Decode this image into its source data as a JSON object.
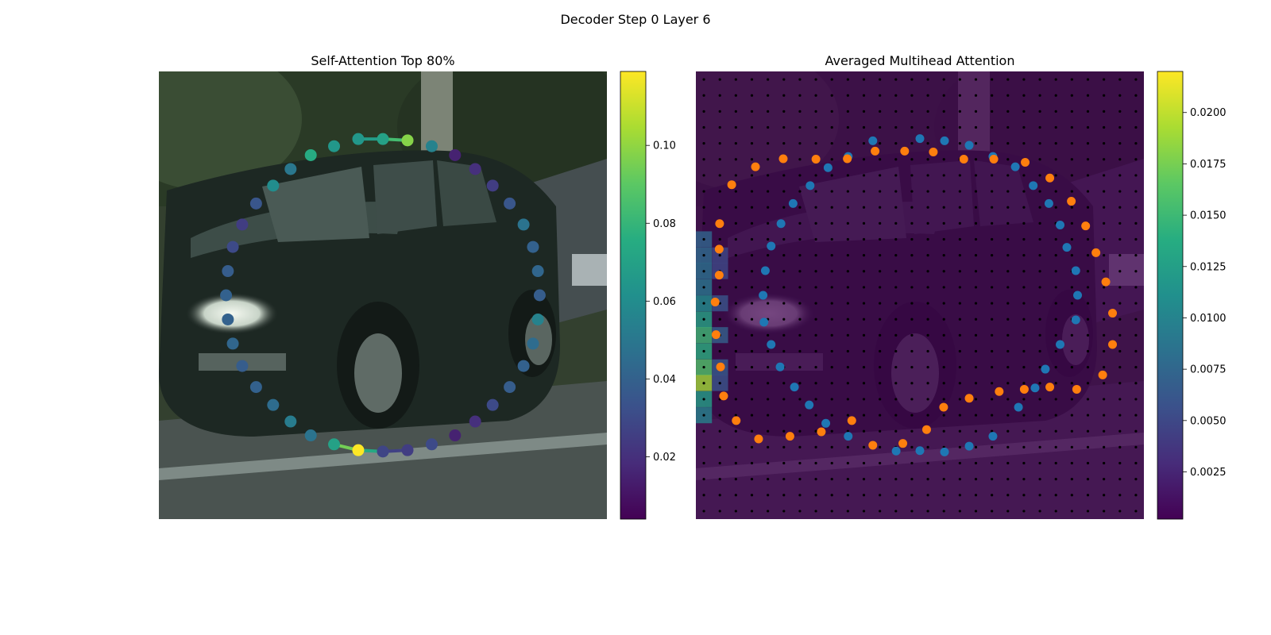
{
  "figure": {
    "title": "Decoder Step 0 Layer 6"
  },
  "chart_data": [
    {
      "type": "scatter",
      "title": "Self-Attention Top 80%",
      "background": "photo of dark green hatchback car on a street",
      "colormap": "viridis",
      "colorbar": {
        "ticks": [
          0.02,
          0.04,
          0.06,
          0.08,
          0.1
        ],
        "tick_labels": [
          "0.02",
          "0.04",
          "0.06",
          "0.08",
          "0.10"
        ],
        "range": [
          0.004,
          0.119
        ]
      },
      "grid": false,
      "points": [
        {
          "x": 0.445,
          "y": 0.151,
          "v": 0.065
        },
        {
          "x": 0.5,
          "y": 0.151,
          "v": 0.07
        },
        {
          "x": 0.555,
          "y": 0.154,
          "v": 0.098
        },
        {
          "x": 0.609,
          "y": 0.167,
          "v": 0.055
        },
        {
          "x": 0.661,
          "y": 0.187,
          "v": 0.015
        },
        {
          "x": 0.706,
          "y": 0.218,
          "v": 0.02
        },
        {
          "x": 0.745,
          "y": 0.255,
          "v": 0.025
        },
        {
          "x": 0.783,
          "y": 0.295,
          "v": 0.035
        },
        {
          "x": 0.814,
          "y": 0.342,
          "v": 0.048
        },
        {
          "x": 0.835,
          "y": 0.392,
          "v": 0.04
        },
        {
          "x": 0.846,
          "y": 0.446,
          "v": 0.042
        },
        {
          "x": 0.85,
          "y": 0.5,
          "v": 0.038
        },
        {
          "x": 0.846,
          "y": 0.554,
          "v": 0.055
        },
        {
          "x": 0.835,
          "y": 0.608,
          "v": 0.045
        },
        {
          "x": 0.814,
          "y": 0.658,
          "v": 0.04
        },
        {
          "x": 0.783,
          "y": 0.705,
          "v": 0.038
        },
        {
          "x": 0.745,
          "y": 0.745,
          "v": 0.03
        },
        {
          "x": 0.706,
          "y": 0.782,
          "v": 0.02
        },
        {
          "x": 0.661,
          "y": 0.813,
          "v": 0.015
        },
        {
          "x": 0.609,
          "y": 0.833,
          "v": 0.03
        },
        {
          "x": 0.555,
          "y": 0.846,
          "v": 0.025
        },
        {
          "x": 0.5,
          "y": 0.849,
          "v": 0.028
        },
        {
          "x": 0.445,
          "y": 0.846,
          "v": 0.119
        },
        {
          "x": 0.391,
          "y": 0.833,
          "v": 0.07
        },
        {
          "x": 0.339,
          "y": 0.813,
          "v": 0.048
        },
        {
          "x": 0.294,
          "y": 0.782,
          "v": 0.052
        },
        {
          "x": 0.255,
          "y": 0.745,
          "v": 0.045
        },
        {
          "x": 0.217,
          "y": 0.705,
          "v": 0.04
        },
        {
          "x": 0.186,
          "y": 0.658,
          "v": 0.038
        },
        {
          "x": 0.165,
          "y": 0.608,
          "v": 0.042
        },
        {
          "x": 0.154,
          "y": 0.554,
          "v": 0.04
        },
        {
          "x": 0.15,
          "y": 0.5,
          "v": 0.04
        },
        {
          "x": 0.154,
          "y": 0.446,
          "v": 0.038
        },
        {
          "x": 0.165,
          "y": 0.392,
          "v": 0.03
        },
        {
          "x": 0.186,
          "y": 0.342,
          "v": 0.025
        },
        {
          "x": 0.217,
          "y": 0.295,
          "v": 0.035
        },
        {
          "x": 0.255,
          "y": 0.255,
          "v": 0.06
        },
        {
          "x": 0.294,
          "y": 0.218,
          "v": 0.05
        },
        {
          "x": 0.339,
          "y": 0.187,
          "v": 0.075
        },
        {
          "x": 0.391,
          "y": 0.167,
          "v": 0.065
        }
      ],
      "connections": [
        [
          0,
          1
        ],
        [
          1,
          2
        ],
        [
          20,
          21
        ],
        [
          21,
          22
        ],
        [
          22,
          23
        ]
      ]
    },
    {
      "type": "heatmap",
      "title": "Averaged Multihead Attention",
      "background": "photo of the same car (dimmed)",
      "colormap": "viridis",
      "colorbar": {
        "ticks": [
          0.0025,
          0.005,
          0.0075,
          0.01,
          0.0125,
          0.015,
          0.0175,
          0.02
        ],
        "tick_labels": [
          "0.0025",
          "0.0050",
          "0.0075",
          "0.0100",
          "0.0125",
          "0.0150",
          "0.0175",
          "0.0200"
        ],
        "range": [
          0.0002,
          0.022
        ]
      },
      "grid_points": "28x28 reference points (black dots)",
      "hot_cells": [
        {
          "x": 0.018,
          "y": 0.375,
          "v": 0.0075
        },
        {
          "x": 0.018,
          "y": 0.411,
          "v": 0.008
        },
        {
          "x": 0.018,
          "y": 0.446,
          "v": 0.0085
        },
        {
          "x": 0.018,
          "y": 0.482,
          "v": 0.009
        },
        {
          "x": 0.018,
          "y": 0.518,
          "v": 0.011
        },
        {
          "x": 0.018,
          "y": 0.554,
          "v": 0.013
        },
        {
          "x": 0.018,
          "y": 0.589,
          "v": 0.015
        },
        {
          "x": 0.018,
          "y": 0.625,
          "v": 0.014
        },
        {
          "x": 0.018,
          "y": 0.661,
          "v": 0.016
        },
        {
          "x": 0.018,
          "y": 0.696,
          "v": 0.019
        },
        {
          "x": 0.018,
          "y": 0.732,
          "v": 0.0125
        },
        {
          "x": 0.018,
          "y": 0.768,
          "v": 0.01
        },
        {
          "x": 0.054,
          "y": 0.518,
          "v": 0.006
        },
        {
          "x": 0.054,
          "y": 0.589,
          "v": 0.007
        },
        {
          "x": 0.054,
          "y": 0.661,
          "v": 0.0065
        },
        {
          "x": 0.054,
          "y": 0.696,
          "v": 0.006
        },
        {
          "x": 0.054,
          "y": 0.446,
          "v": 0.005
        },
        {
          "x": 0.054,
          "y": 0.411,
          "v": 0.005
        }
      ],
      "series": [
        {
          "color": "#1f77b4",
          "points": [
            {
              "x": 0.395,
              "y": 0.155
            },
            {
              "x": 0.5,
              "y": 0.15
            },
            {
              "x": 0.555,
              "y": 0.155
            },
            {
              "x": 0.61,
              "y": 0.165
            },
            {
              "x": 0.663,
              "y": 0.19
            },
            {
              "x": 0.713,
              "y": 0.213
            },
            {
              "x": 0.753,
              "y": 0.255
            },
            {
              "x": 0.788,
              "y": 0.295
            },
            {
              "x": 0.813,
              "y": 0.343
            },
            {
              "x": 0.828,
              "y": 0.393
            },
            {
              "x": 0.848,
              "y": 0.445
            },
            {
              "x": 0.852,
              "y": 0.5
            },
            {
              "x": 0.848,
              "y": 0.555
            },
            {
              "x": 0.813,
              "y": 0.61
            },
            {
              "x": 0.78,
              "y": 0.665
            },
            {
              "x": 0.757,
              "y": 0.707
            },
            {
              "x": 0.72,
              "y": 0.75
            },
            {
              "x": 0.663,
              "y": 0.815
            },
            {
              "x": 0.61,
              "y": 0.837
            },
            {
              "x": 0.555,
              "y": 0.85
            },
            {
              "x": 0.5,
              "y": 0.847
            },
            {
              "x": 0.447,
              "y": 0.848
            },
            {
              "x": 0.34,
              "y": 0.815
            },
            {
              "x": 0.29,
              "y": 0.786
            },
            {
              "x": 0.253,
              "y": 0.745
            },
            {
              "x": 0.22,
              "y": 0.705
            },
            {
              "x": 0.188,
              "y": 0.66
            },
            {
              "x": 0.168,
              "y": 0.61
            },
            {
              "x": 0.152,
              "y": 0.56
            },
            {
              "x": 0.15,
              "y": 0.5
            },
            {
              "x": 0.155,
              "y": 0.445
            },
            {
              "x": 0.168,
              "y": 0.39
            },
            {
              "x": 0.19,
              "y": 0.34
            },
            {
              "x": 0.217,
              "y": 0.295
            },
            {
              "x": 0.255,
              "y": 0.255
            },
            {
              "x": 0.295,
              "y": 0.215
            },
            {
              "x": 0.34,
              "y": 0.19
            }
          ]
        },
        {
          "color": "#ff7f0e",
          "points": [
            {
              "x": 0.133,
              "y": 0.213
            },
            {
              "x": 0.195,
              "y": 0.195
            },
            {
              "x": 0.268,
              "y": 0.196
            },
            {
              "x": 0.338,
              "y": 0.195
            },
            {
              "x": 0.4,
              "y": 0.178
            },
            {
              "x": 0.466,
              "y": 0.178
            },
            {
              "x": 0.53,
              "y": 0.18
            },
            {
              "x": 0.598,
              "y": 0.196
            },
            {
              "x": 0.665,
              "y": 0.196
            },
            {
              "x": 0.735,
              "y": 0.203
            },
            {
              "x": 0.79,
              "y": 0.238
            },
            {
              "x": 0.838,
              "y": 0.29
            },
            {
              "x": 0.87,
              "y": 0.345
            },
            {
              "x": 0.893,
              "y": 0.405
            },
            {
              "x": 0.915,
              "y": 0.47
            },
            {
              "x": 0.93,
              "y": 0.54
            },
            {
              "x": 0.93,
              "y": 0.61
            },
            {
              "x": 0.908,
              "y": 0.678
            },
            {
              "x": 0.85,
              "y": 0.71
            },
            {
              "x": 0.79,
              "y": 0.705
            },
            {
              "x": 0.733,
              "y": 0.71
            },
            {
              "x": 0.677,
              "y": 0.715
            },
            {
              "x": 0.61,
              "y": 0.73
            },
            {
              "x": 0.553,
              "y": 0.75
            },
            {
              "x": 0.515,
              "y": 0.8
            },
            {
              "x": 0.462,
              "y": 0.831
            },
            {
              "x": 0.395,
              "y": 0.835
            },
            {
              "x": 0.348,
              "y": 0.78
            },
            {
              "x": 0.28,
              "y": 0.805
            },
            {
              "x": 0.21,
              "y": 0.815
            },
            {
              "x": 0.14,
              "y": 0.821
            },
            {
              "x": 0.09,
              "y": 0.78
            },
            {
              "x": 0.062,
              "y": 0.725
            },
            {
              "x": 0.055,
              "y": 0.66
            },
            {
              "x": 0.045,
              "y": 0.588
            },
            {
              "x": 0.043,
              "y": 0.515
            },
            {
              "x": 0.052,
              "y": 0.455
            },
            {
              "x": 0.052,
              "y": 0.397
            },
            {
              "x": 0.053,
              "y": 0.34
            },
            {
              "x": 0.08,
              "y": 0.253
            }
          ]
        }
      ]
    }
  ]
}
